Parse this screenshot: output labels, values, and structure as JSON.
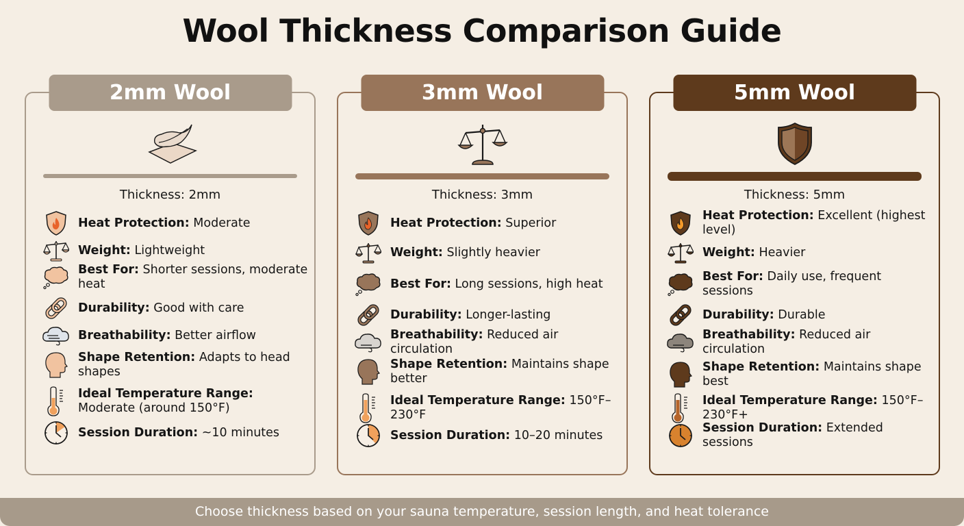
{
  "title": "Wool Thickness Comparison Guide",
  "footer": "Choose thickness based on your sauna temperature, session length, and heat tolerance",
  "colors": {
    "background": "#f5eee4",
    "card_2mm": "#a99b8b",
    "card_3mm": "#98755a",
    "card_5mm": "#5e3a1c",
    "accent_orange": "#e7883a"
  },
  "cards": [
    {
      "name": "2mm Wool",
      "hero_icon": "feather-on-fabric-icon",
      "thickness": "Thickness: 2mm",
      "rows": [
        {
          "icon": "flame-shield-icon",
          "label": "Heat Protection:",
          "value": " Moderate"
        },
        {
          "icon": "scale-icon",
          "label": "Weight:",
          "value": " Lightweight"
        },
        {
          "icon": "thought-cloud-icon",
          "label": "Best For:",
          "value": " Shorter sessions, moderate heat"
        },
        {
          "icon": "chain-link-icon",
          "label": "Durability:",
          "value": " Good with care"
        },
        {
          "icon": "wind-cloud-icon",
          "label": "Breathability:",
          "value": " Better airflow"
        },
        {
          "icon": "head-profile-icon",
          "label": "Shape Retention:",
          "value": " Adapts to head shapes"
        },
        {
          "icon": "thermometer-icon",
          "label": "Ideal Temperature Range:",
          "value": " Moderate (around 150°F)"
        },
        {
          "icon": "clock-icon",
          "label": "Session Duration:",
          "value": " ~10 minutes"
        }
      ]
    },
    {
      "name": "3mm Wool",
      "hero_icon": "balance-scale-icon",
      "thickness": "Thickness: 3mm",
      "rows": [
        {
          "icon": "flame-shield-icon",
          "label": "Heat Protection:",
          "value": " Superior"
        },
        {
          "icon": "scale-icon",
          "label": "Weight:",
          "value": " Slightly heavier"
        },
        {
          "icon": "thought-cloud-icon",
          "label": "Best For:",
          "value": " Long sessions, high heat"
        },
        {
          "icon": "chain-link-icon",
          "label": "Durability:",
          "value": " Longer-lasting"
        },
        {
          "icon": "wind-cloud-icon",
          "label": "Breathability:",
          "value": " Reduced air circulation"
        },
        {
          "icon": "head-profile-icon",
          "label": "Shape Retention:",
          "value": " Maintains shape better"
        },
        {
          "icon": "thermometer-icon",
          "label": "Ideal Temperature Range:",
          "value": " 150°F–230°F"
        },
        {
          "icon": "clock-icon",
          "label": "Session Duration:",
          "value": " 10–20 minutes"
        }
      ]
    },
    {
      "name": "5mm Wool",
      "hero_icon": "shield-icon",
      "thickness": "Thickness: 5mm",
      "rows": [
        {
          "icon": "flame-shield-icon",
          "label": "Heat Protection:",
          "value": " Excellent (highest level)"
        },
        {
          "icon": "scale-icon",
          "label": "Weight:",
          "value": " Heavier"
        },
        {
          "icon": "thought-cloud-icon",
          "label": "Best For:",
          "value": " Daily use, frequent sessions"
        },
        {
          "icon": "chain-link-icon",
          "label": "Durability:",
          "value": " Durable"
        },
        {
          "icon": "wind-cloud-icon",
          "label": "Breathability:",
          "value": " Reduced air circulation"
        },
        {
          "icon": "head-profile-icon",
          "label": "Shape Retention:",
          "value": " Maintains shape best"
        },
        {
          "icon": "thermometer-icon",
          "label": "Ideal Temperature Range:",
          "value": " 150°F–230°F+"
        },
        {
          "icon": "clock-icon",
          "label": "Session Duration:",
          "value": " Extended sessions"
        }
      ]
    }
  ]
}
